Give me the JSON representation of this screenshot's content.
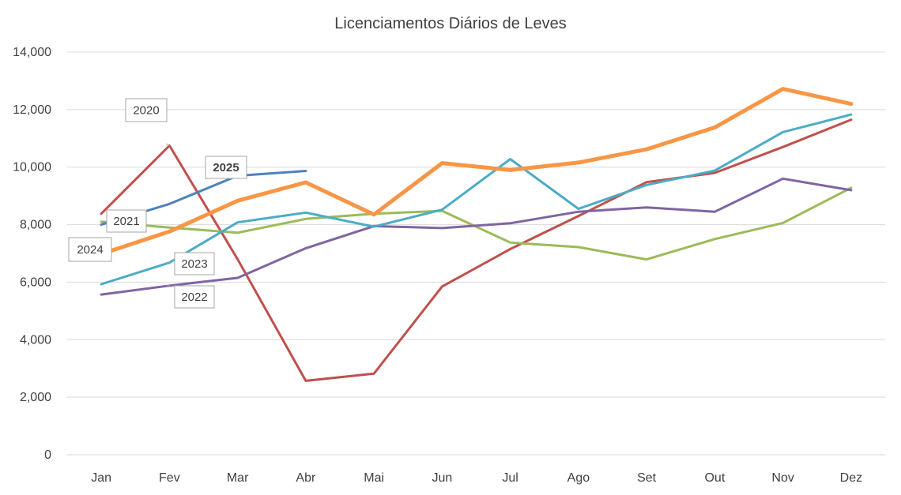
{
  "chart_data": {
    "type": "line",
    "title": "Licenciamentos Diários de Leves",
    "xlabel": "",
    "ylabel": "",
    "categories": [
      "Jan",
      "Fev",
      "Mar",
      "Abr",
      "Mai",
      "Jun",
      "Jul",
      "Ago",
      "Set",
      "Out",
      "Nov",
      "Dez"
    ],
    "ylim": [
      0,
      14000
    ],
    "yticks": [
      0,
      2000,
      4000,
      6000,
      8000,
      10000,
      12000,
      14000
    ],
    "ytick_labels": [
      "0",
      "2,000",
      "4,000",
      "6,000",
      "8,000",
      "10,000",
      "12,000",
      "14,000"
    ],
    "grid": true,
    "legend": "none (series labeled with callouts)",
    "series": [
      {
        "name": "2020",
        "color": "#c0504d",
        "bold": false,
        "values": [
          8380,
          10750,
          6800,
          2570,
          2820,
          5850,
          7150,
          8300,
          9480,
          9800,
          10700,
          11650
        ]
      },
      {
        "name": "2021",
        "color": "#9bbb59",
        "bold": false,
        "values": [
          8100,
          7900,
          7720,
          8200,
          8380,
          8480,
          7380,
          7220,
          6790,
          7500,
          8060,
          9280
        ]
      },
      {
        "name": "2022",
        "color": "#8064a2",
        "bold": false,
        "values": [
          5570,
          5880,
          6150,
          7180,
          7950,
          7880,
          8050,
          8450,
          8600,
          8450,
          9600,
          9200
        ]
      },
      {
        "name": "2023",
        "color": "#4bacc6",
        "bold": false,
        "values": [
          5930,
          6680,
          8080,
          8420,
          7930,
          8520,
          10280,
          8550,
          9380,
          9880,
          11220,
          11830
        ]
      },
      {
        "name": "2024",
        "color": "#f79646",
        "bold": false,
        "width": 5,
        "values": [
          6980,
          7760,
          8830,
          9470,
          8350,
          10140,
          9900,
          10160,
          10620,
          11380,
          12720,
          12200
        ]
      },
      {
        "name": "2025",
        "color": "#4f81bd",
        "bold": true,
        "values": [
          8000,
          8720,
          9700,
          9870,
          null,
          null,
          null,
          null,
          null,
          null,
          null,
          null
        ]
      }
    ],
    "callouts": [
      {
        "label": "2020",
        "series": "2020",
        "anchor_index": 1,
        "bold": false
      },
      {
        "label": "2021",
        "series": "2021",
        "anchor_index": 0,
        "bold": false
      },
      {
        "label": "2022",
        "series": "2022",
        "anchor_index": 1,
        "bold": false
      },
      {
        "label": "2023",
        "series": "2023",
        "anchor_index": 1,
        "bold": false
      },
      {
        "label": "2024",
        "series": "2024",
        "anchor_index": 0,
        "bold": false
      },
      {
        "label": "2025",
        "series": "2025",
        "anchor_index": 2,
        "bold": true
      }
    ]
  }
}
